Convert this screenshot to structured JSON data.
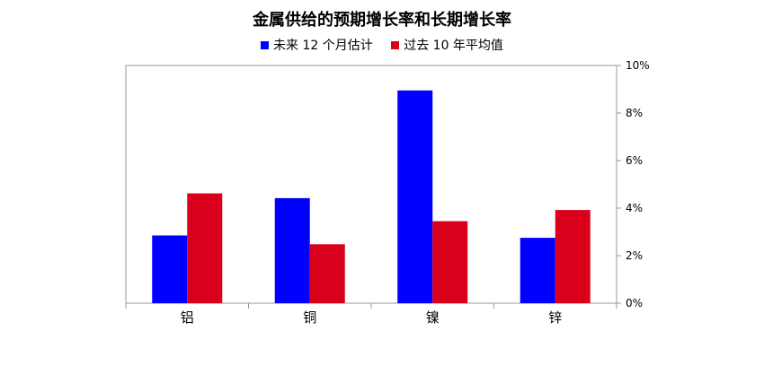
{
  "colors": {
    "series1": "#0000ff",
    "series2": "#d9001b",
    "axis": "#999999"
  },
  "chart_data": {
    "type": "bar",
    "title": "金属供给的预期增长率和长期增长率",
    "categories": [
      "铝",
      "铜",
      "镍",
      "锌"
    ],
    "series": [
      {
        "name": "未来 12 个月估计",
        "values": [
          2.85,
          4.42,
          8.95,
          2.75
        ]
      },
      {
        "name": "过去 10 年平均值",
        "values": [
          4.62,
          2.48,
          3.45,
          3.92
        ]
      }
    ],
    "ylim": [
      0,
      10
    ],
    "yticks": [
      "0%",
      "2%",
      "4%",
      "6%",
      "8%",
      "10%"
    ],
    "xlabel": "",
    "ylabel": "",
    "y_axis_side": "right",
    "grid": false,
    "legend_position": "top"
  }
}
